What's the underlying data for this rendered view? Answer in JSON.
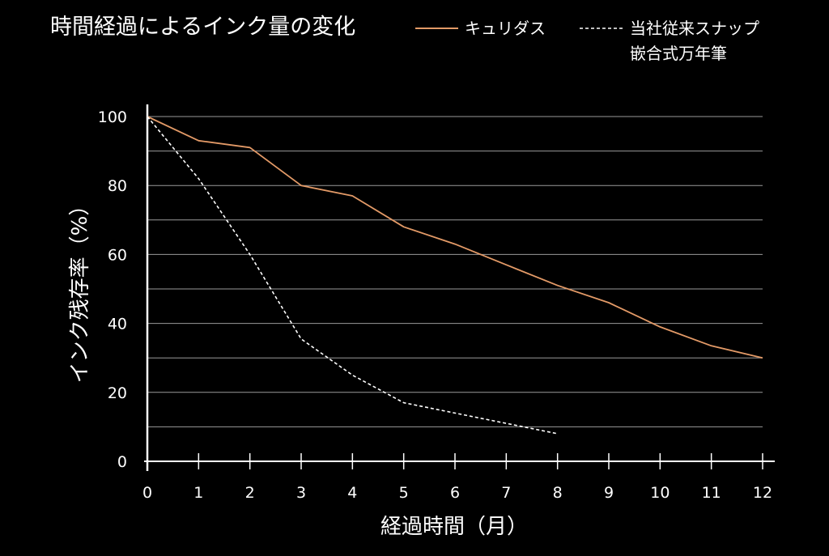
{
  "colors": {
    "background": "#000000",
    "text": "#ffffff",
    "grid": "#9a9a9a",
    "axis": "#ffffff",
    "series_kyuridas": "#e39a67",
    "series_conventional": "#ffffff"
  },
  "chart_data": {
    "type": "line",
    "title": "時間経過によるインク量の変化",
    "xlabel": "経過時間（月）",
    "ylabel": "インク残存率（%）",
    "xlim": [
      0,
      12
    ],
    "ylim": [
      0,
      100
    ],
    "x_ticks": [
      "0",
      "1",
      "2",
      "3",
      "4",
      "5",
      "6",
      "7",
      "8",
      "9",
      "10",
      "11",
      "12"
    ],
    "y_ticks": [
      "0",
      "20",
      "40",
      "60",
      "80",
      "100"
    ],
    "grid": "horizontal every 10",
    "legend_position": "top-right",
    "series": [
      {
        "name": "キュリダス",
        "style": "solid",
        "x": [
          0,
          1,
          2,
          3,
          4,
          5,
          6,
          7,
          8,
          9,
          10,
          11,
          12
        ],
        "y": [
          100,
          93,
          91,
          80,
          77,
          68,
          63,
          57,
          51,
          46,
          39,
          33.5,
          30
        ]
      },
      {
        "name": "当社従来スナップ嵌合式万年筆",
        "name_lines": [
          "当社従来スナップ",
          "嵌合式万年筆"
        ],
        "style": "dashed",
        "x": [
          0,
          1,
          2,
          3,
          4,
          5,
          6,
          7,
          8
        ],
        "y": [
          100,
          82,
          60,
          35.5,
          25,
          17,
          14,
          11,
          8
        ]
      }
    ]
  }
}
